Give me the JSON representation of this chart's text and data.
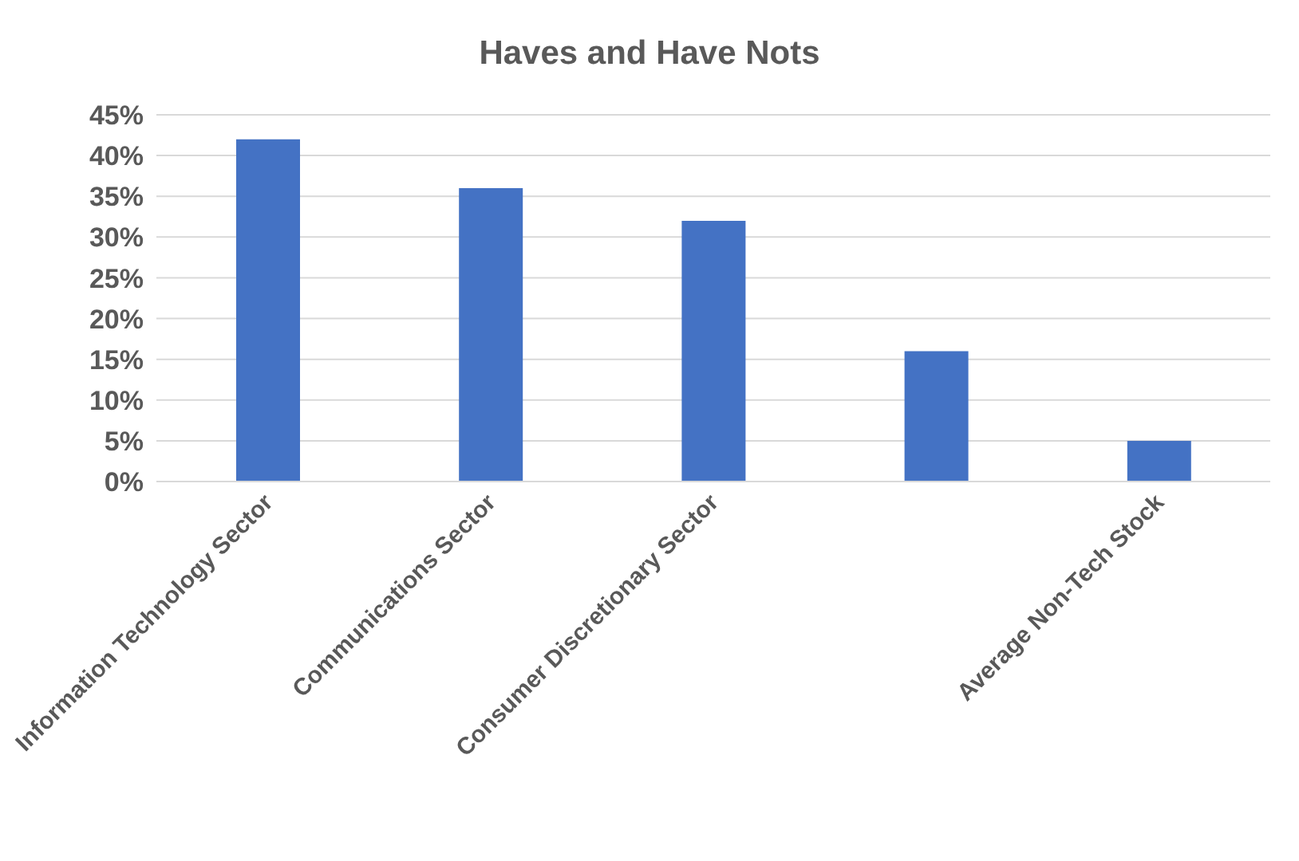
{
  "chart_data": {
    "type": "bar",
    "title": "Haves and Have Nots",
    "categories": [
      "Information Technology Sector",
      "Communications Sector",
      "Consumer Discretionary Sector",
      null,
      "Average Non-Tech Stock"
    ],
    "values": [
      42,
      36,
      32,
      16,
      5
    ],
    "color": "#4472c4",
    "ylim": [
      0,
      45
    ],
    "yticks": [
      {
        "value": 0,
        "label": "0%"
      },
      {
        "value": 5,
        "label": "5%"
      },
      {
        "value": 10,
        "label": "10%"
      },
      {
        "value": 15,
        "label": "15%"
      },
      {
        "value": 20,
        "label": "20%"
      },
      {
        "value": 25,
        "label": "25%"
      },
      {
        "value": 30,
        "label": "30%"
      },
      {
        "value": 35,
        "label": "35%"
      },
      {
        "value": 40,
        "label": "40%"
      },
      {
        "value": 45,
        "label": "45%"
      }
    ],
    "grid": "y"
  }
}
